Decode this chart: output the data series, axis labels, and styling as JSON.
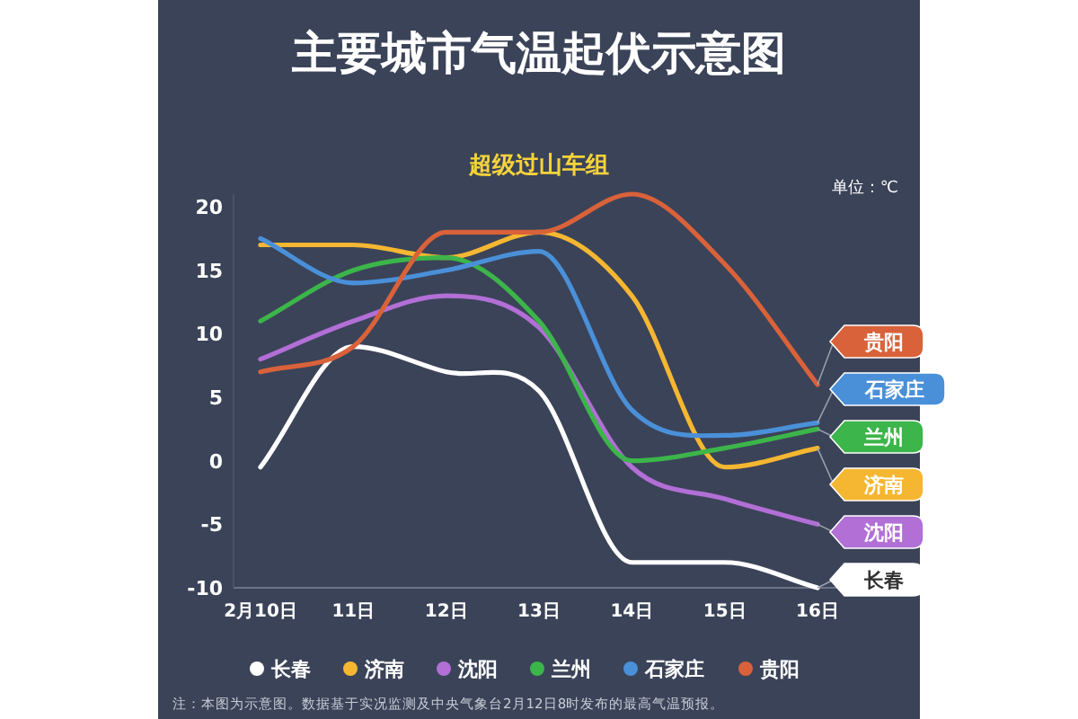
{
  "chart_data": {
    "type": "line",
    "title": "主要城市气温起伏示意图",
    "subtitle": "超级过山车组",
    "ylabel": "单位：℃",
    "categories": [
      "2月10日",
      "11日",
      "12日",
      "13日",
      "14日",
      "15日",
      "16日"
    ],
    "series": [
      {
        "name": "长春",
        "color": "#ffffff",
        "values": [
          -0.5,
          9,
          7,
          5.5,
          -8,
          -8,
          -10
        ]
      },
      {
        "name": "济南",
        "color": "#f5b731",
        "values": [
          17,
          17,
          16,
          18,
          13,
          -0.5,
          1
        ]
      },
      {
        "name": "沈阳",
        "color": "#b26fd6",
        "values": [
          8,
          11,
          13,
          10.5,
          -0.5,
          -3,
          -5
        ]
      },
      {
        "name": "兰州",
        "color": "#3cb54a",
        "values": [
          11,
          15,
          16,
          11,
          0,
          1,
          2.5
        ]
      },
      {
        "name": "石家庄",
        "color": "#4a90d9",
        "values": [
          17.5,
          14,
          15,
          16.5,
          4,
          2,
          3
        ]
      },
      {
        "name": "贵阳",
        "color": "#d9623a",
        "values": [
          7,
          9,
          18,
          18,
          21,
          15.5,
          6
        ]
      }
    ],
    "ylim": [
      -10,
      21
    ],
    "yticks": [
      -10,
      -5,
      0,
      5,
      10,
      15,
      20
    ],
    "legend": "bottom",
    "annotations": [
      "注：本图为示意图。数据基于实况监测及中央气象台2月12日8时发布的最高气温预报。"
    ]
  }
}
